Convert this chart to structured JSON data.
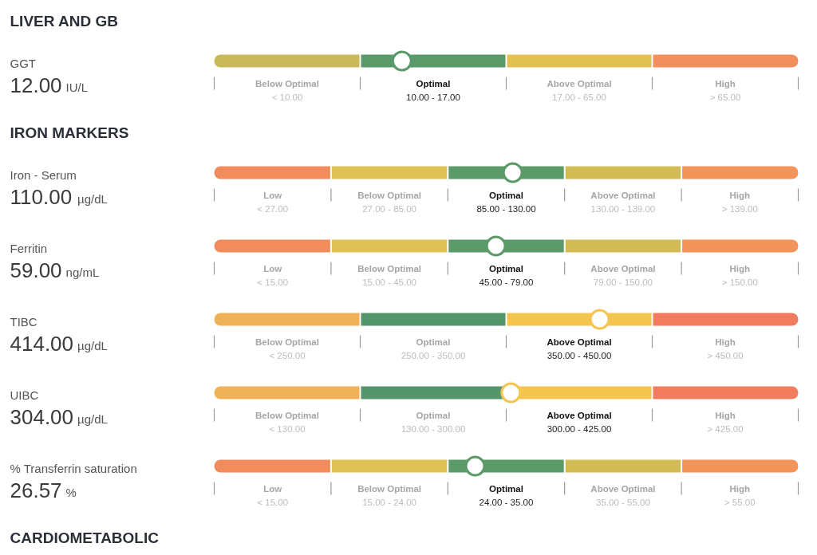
{
  "chart_data": [
    {
      "type": "other",
      "title": "LIVER AND GB"
    },
    {
      "type": "other",
      "categories": [
        "GGT"
      ],
      "values": [
        12.0
      ],
      "value_labels": [
        "12.00"
      ],
      "xlabel": "IU/L",
      "bands": [
        {
          "axis": "x",
          "label": "Below Optimal",
          "color": "#c9b958"
        },
        {
          "axis": "x",
          "label": "Optimal",
          "color": "#5a9a6a"
        },
        {
          "axis": "x",
          "label": "Above Optimal",
          "color": "#e2c052"
        },
        {
          "axis": "x",
          "label": "High",
          "color": "#f28f5c"
        }
      ],
      "annotations": [
        "< 10.00",
        "10.00 - 17.00",
        "17.00 - 65.00",
        "> 65.00"
      ]
    },
    {
      "type": "other",
      "title": "IRON MARKERS"
    },
    {
      "type": "other",
      "categories": [
        "Iron - Serum"
      ],
      "values": [
        110.0
      ],
      "value_labels": [
        "110.00"
      ],
      "xlabel": "µg/dL",
      "bands": [
        {
          "axis": "x",
          "label": "Low",
          "color": "#f28c5c"
        },
        {
          "axis": "x",
          "label": "Below Optimal",
          "color": "#e0c153"
        },
        {
          "axis": "x",
          "label": "Optimal",
          "color": "#5c9a69"
        },
        {
          "axis": "x",
          "label": "Above Optimal",
          "color": "#d3bb55"
        },
        {
          "axis": "x",
          "label": "High",
          "color": "#f3945b"
        }
      ],
      "annotations": [
        "< 27.00",
        "27.00 - 85.00",
        "85.00 - 130.00",
        "130.00 - 139.00",
        "> 139.00"
      ]
    },
    {
      "type": "other",
      "categories": [
        "Ferritin"
      ],
      "values": [
        59.0
      ],
      "value_labels": [
        "59.00"
      ],
      "xlabel": "ng/mL",
      "bands": [
        {
          "axis": "x",
          "label": "Low",
          "color": "#f28c5c"
        },
        {
          "axis": "x",
          "label": "Below Optimal",
          "color": "#e0c153"
        },
        {
          "axis": "x",
          "label": "Optimal",
          "color": "#5c9a69"
        },
        {
          "axis": "x",
          "label": "Above Optimal",
          "color": "#d3bb55"
        },
        {
          "axis": "x",
          "label": "High",
          "color": "#f3945b"
        }
      ],
      "annotations": [
        "< 15.00",
        "15.00 - 45.00",
        "45.00 - 79.00",
        "79.00 - 150.00",
        "> 150.00"
      ]
    },
    {
      "type": "other",
      "categories": [
        "TIBC"
      ],
      "values": [
        414.0
      ],
      "value_labels": [
        "414.00"
      ],
      "xlabel": "µg/dL",
      "bands": [
        {
          "axis": "x",
          "label": "Below Optimal",
          "color": "#f0b257"
        },
        {
          "axis": "x",
          "label": "Optimal",
          "color": "#55956b"
        },
        {
          "axis": "x",
          "label": "Above Optimal",
          "color": "#f4c650"
        },
        {
          "axis": "x",
          "label": "High",
          "color": "#f17d5e"
        }
      ],
      "annotations": [
        "< 250.00",
        "250.00 - 350.00",
        "350.00 - 450.00",
        "> 450.00"
      ]
    },
    {
      "type": "other",
      "categories": [
        "UIBC"
      ],
      "values": [
        304.0
      ],
      "value_labels": [
        "304.00"
      ],
      "xlabel": "µg/dL",
      "bands": [
        {
          "axis": "x",
          "label": "Below Optimal",
          "color": "#f0b257"
        },
        {
          "axis": "x",
          "label": "Optimal",
          "color": "#55956b"
        },
        {
          "axis": "x",
          "label": "Above Optimal",
          "color": "#f4c650"
        },
        {
          "axis": "x",
          "label": "High",
          "color": "#f17d5e"
        }
      ],
      "annotations": [
        "< 130.00",
        "130.00 - 300.00",
        "300.00 - 425.00",
        "> 425.00"
      ]
    },
    {
      "type": "other",
      "categories": [
        "% Transferrin saturation"
      ],
      "values": [
        26.57
      ],
      "value_labels": [
        "26.57"
      ],
      "xlabel": "%",
      "bands": [
        {
          "axis": "x",
          "label": "Low",
          "color": "#f28c5c"
        },
        {
          "axis": "x",
          "label": "Below Optimal",
          "color": "#e0c153"
        },
        {
          "axis": "x",
          "label": "Optimal",
          "color": "#5c9a69"
        },
        {
          "axis": "x",
          "label": "Above Optimal",
          "color": "#d3bb55"
        },
        {
          "axis": "x",
          "label": "High",
          "color": "#f3945b"
        }
      ],
      "annotations": [
        "< 15.00",
        "15.00 - 24.00",
        "24.00 - 35.00",
        "35.00 - 55.00",
        "> 55.00"
      ]
    },
    {
      "type": "other",
      "title": "CARDIOMETABOLIC"
    }
  ]
}
